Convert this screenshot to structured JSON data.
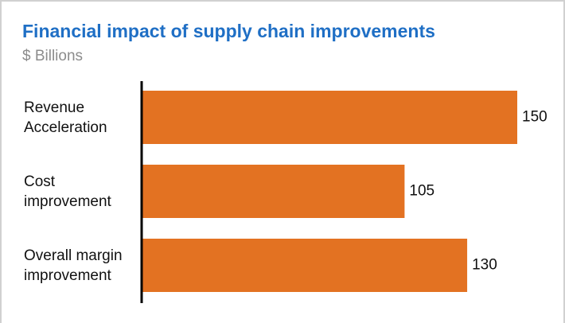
{
  "chart_data": {
    "type": "bar",
    "orientation": "horizontal",
    "title": "Financial impact of supply chain improvements",
    "subtitle": "$ Billions",
    "categories": [
      "Revenue Acceleration",
      "Cost improvement",
      "Overall margin improvement"
    ],
    "values": [
      150,
      105,
      130
    ],
    "color": "#e37222",
    "xlim": [
      0,
      150
    ]
  }
}
